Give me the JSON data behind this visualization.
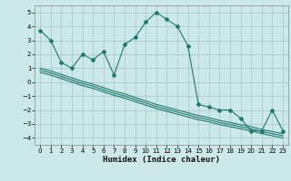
{
  "xlabel": "Humidex (Indice chaleur)",
  "background_color": "#cce8e8",
  "grid_color": "#aacccc",
  "line_color": "#1a7a6e",
  "xlim": [
    -0.5,
    23.5
  ],
  "ylim": [
    -4.5,
    5.5
  ],
  "yticks": [
    -4,
    -3,
    -2,
    -1,
    0,
    1,
    2,
    3,
    4,
    5
  ],
  "xticks": [
    0,
    1,
    2,
    3,
    4,
    5,
    6,
    7,
    8,
    9,
    10,
    11,
    12,
    13,
    14,
    15,
    16,
    17,
    18,
    19,
    20,
    21,
    22,
    23
  ],
  "main_series": [
    3.7,
    3.0,
    1.4,
    1.0,
    2.0,
    1.6,
    2.2,
    0.5,
    2.7,
    3.2,
    4.3,
    5.0,
    4.5,
    4.0,
    2.6,
    -1.6,
    -1.8,
    -2.0,
    -2.0,
    -2.6,
    -3.5,
    -3.5,
    -2.0,
    -3.5
  ],
  "lower_line1": [
    1.0,
    0.8,
    0.55,
    0.3,
    0.05,
    -0.15,
    -0.4,
    -0.65,
    -0.85,
    -1.1,
    -1.35,
    -1.6,
    -1.8,
    -2.0,
    -2.2,
    -2.4,
    -2.55,
    -2.75,
    -2.9,
    -3.05,
    -3.2,
    -3.4,
    -3.55,
    -3.7
  ],
  "lower_line2": [
    0.85,
    0.65,
    0.4,
    0.15,
    -0.1,
    -0.3,
    -0.55,
    -0.8,
    -1.0,
    -1.25,
    -1.5,
    -1.75,
    -1.95,
    -2.15,
    -2.35,
    -2.55,
    -2.7,
    -2.9,
    -3.05,
    -3.2,
    -3.35,
    -3.55,
    -3.7,
    -3.85
  ],
  "lower_line3": [
    0.7,
    0.5,
    0.25,
    0.0,
    -0.25,
    -0.45,
    -0.7,
    -0.95,
    -1.15,
    -1.4,
    -1.65,
    -1.9,
    -2.1,
    -2.3,
    -2.5,
    -2.7,
    -2.85,
    -3.05,
    -3.2,
    -3.35,
    -3.5,
    -3.7,
    -3.85,
    -4.0
  ]
}
